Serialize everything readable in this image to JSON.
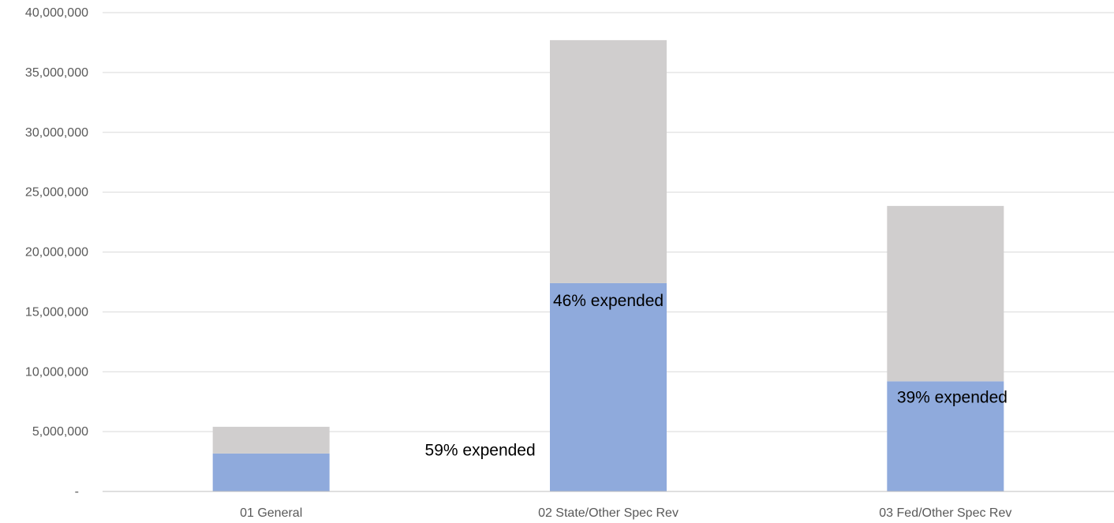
{
  "chart_data": {
    "type": "bar",
    "stacked": true,
    "categories": [
      "01 General",
      "02 State/Other Spec Rev",
      "03 Fed/Other Spec Rev"
    ],
    "series": [
      {
        "values": [
          3170000,
          17400000,
          9200000
        ],
        "color": "#8FAADC"
      },
      {
        "values": [
          2230000,
          20300000,
          14650000
        ],
        "color": "#D0CECE"
      }
    ],
    "ylim": [
      0,
      40000000
    ],
    "y_ticks": [
      0,
      5000000,
      10000000,
      15000000,
      20000000,
      25000000,
      30000000,
      35000000,
      40000000
    ],
    "y_tick_labels": [
      "-",
      "5,000,000",
      "10,000,000",
      "15,000,000",
      "20,000,000",
      "25,000,000",
      "30,000,000",
      "35,000,000",
      "40,000,000"
    ],
    "annotations": [
      "59% expended",
      "46% expended",
      "39% expended"
    ],
    "grid": true,
    "legend": "none",
    "gridline_color": "#D9D9D9",
    "axis_color": "#BFBFBF"
  }
}
